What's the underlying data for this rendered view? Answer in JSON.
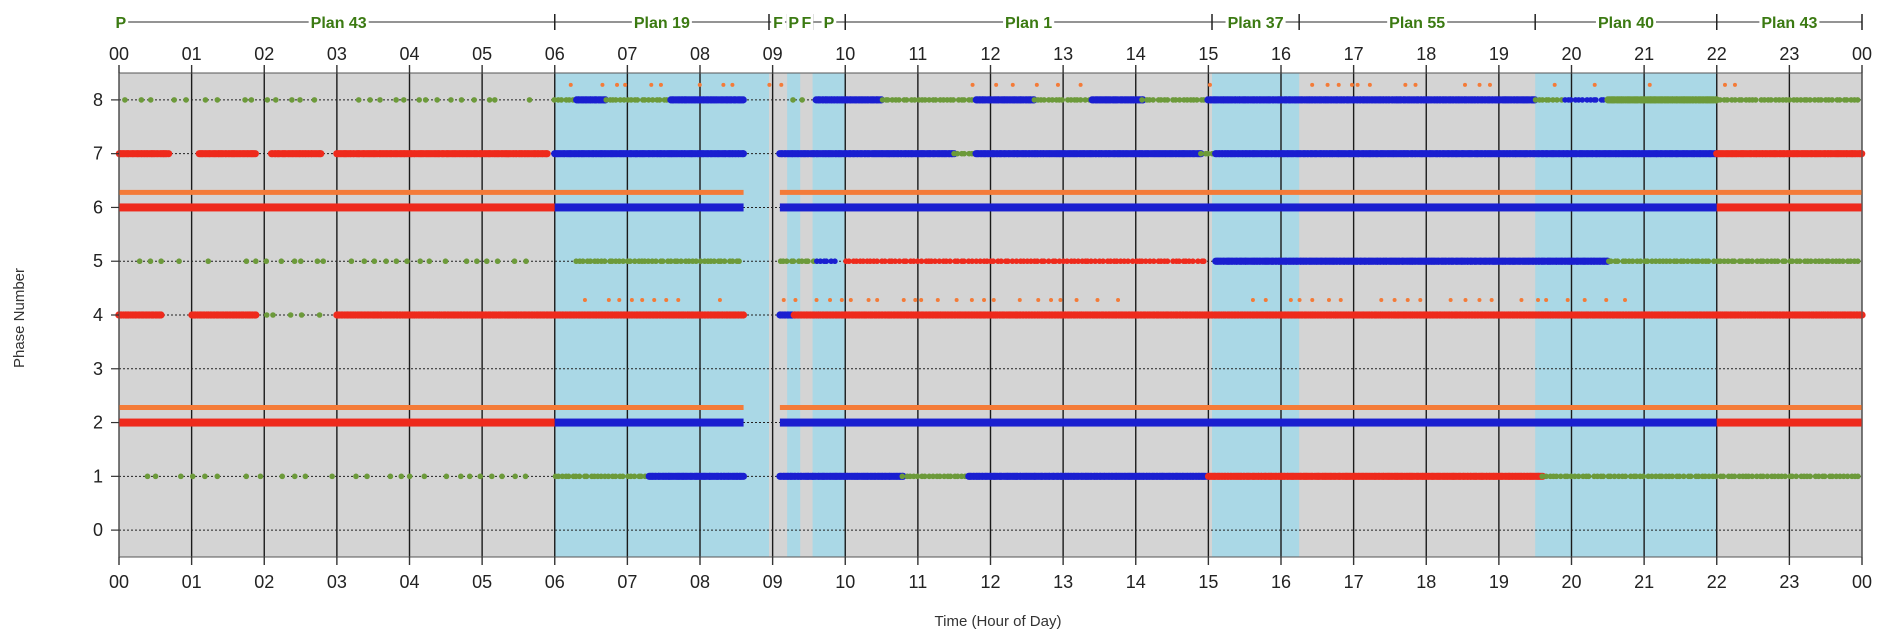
{
  "chart_data": {
    "type": "scatter",
    "title": "",
    "xlabel": "Time (Hour of Day)",
    "ylabel": "Phase Number",
    "xlim": [
      0,
      24
    ],
    "ylim": [
      -0.5,
      8.5
    ],
    "x_ticks": [
      "00",
      "01",
      "02",
      "03",
      "04",
      "05",
      "06",
      "07",
      "08",
      "09",
      "10",
      "11",
      "12",
      "13",
      "14",
      "15",
      "16",
      "17",
      "18",
      "19",
      "20",
      "21",
      "22",
      "23",
      "00"
    ],
    "y_ticks": [
      "0",
      "1",
      "2",
      "3",
      "4",
      "5",
      "6",
      "7",
      "8"
    ],
    "grid": "dotted horizontal at each phase, solid vertical at each hour",
    "colors": {
      "plot_bg": "#d4d4d4",
      "plan_shade": "#aad8e6",
      "red": "#ee2a1c",
      "orange": "#f47b38",
      "green": "#6c9a3a",
      "blue": "#1a1fd0",
      "plan_text": "#3b7a12"
    },
    "plans": [
      {
        "label": "P",
        "start": 0.0,
        "end": 0.05,
        "shaded": false
      },
      {
        "label": "Plan 43",
        "start": 0.05,
        "end": 6.0,
        "shaded": false
      },
      {
        "label": "Plan 19",
        "start": 6.0,
        "end": 8.95,
        "shaded": true
      },
      {
        "label": "F",
        "start": 8.95,
        "end": 9.2,
        "shaded": false
      },
      {
        "label": "P",
        "start": 9.2,
        "end": 9.38,
        "shaded": true
      },
      {
        "label": "F",
        "start": 9.38,
        "end": 9.55,
        "shaded": false
      },
      {
        "label": "P",
        "start": 9.55,
        "end": 10.0,
        "shaded": true
      },
      {
        "label": "Plan 1",
        "start": 10.0,
        "end": 15.05,
        "shaded": false
      },
      {
        "label": "Plan 37",
        "start": 15.05,
        "end": 16.25,
        "shaded": true
      },
      {
        "label": "Plan 55",
        "start": 16.25,
        "end": 19.5,
        "shaded": false
      },
      {
        "label": "Plan 40",
        "start": 19.5,
        "end": 22.0,
        "shaded": true
      },
      {
        "label": "Plan 43",
        "start": 22.0,
        "end": 24.0,
        "shaded": false
      }
    ],
    "series": [
      {
        "phase": 8,
        "segments": [
          {
            "color": "green",
            "density": "sparse",
            "from": 0.1,
            "to": 6.0
          },
          {
            "color": "green",
            "density": "medium",
            "from": 6.0,
            "to": 6.3
          },
          {
            "color": "blue",
            "density": "dense",
            "from": 6.3,
            "to": 6.7
          },
          {
            "color": "green",
            "density": "medium",
            "from": 6.7,
            "to": 7.6
          },
          {
            "color": "blue",
            "density": "dense",
            "from": 7.6,
            "to": 8.6
          },
          {
            "color": "green",
            "density": "sparse",
            "from": 9.1,
            "to": 9.6
          },
          {
            "color": "blue",
            "density": "dense",
            "from": 9.6,
            "to": 10.5
          },
          {
            "color": "green",
            "density": "medium",
            "from": 10.5,
            "to": 11.8
          },
          {
            "color": "blue",
            "density": "dense",
            "from": 11.8,
            "to": 12.6
          },
          {
            "color": "green",
            "density": "medium",
            "from": 12.6,
            "to": 13.4
          },
          {
            "color": "blue",
            "density": "dense",
            "from": 13.4,
            "to": 14.1
          },
          {
            "color": "green",
            "density": "medium",
            "from": 14.1,
            "to": 15.0
          },
          {
            "color": "blue",
            "density": "dense",
            "from": 15.0,
            "to": 19.5
          },
          {
            "color": "green",
            "density": "medium",
            "from": 19.5,
            "to": 19.9
          },
          {
            "color": "blue",
            "density": "medium",
            "from": 19.9,
            "to": 20.5
          },
          {
            "color": "green",
            "density": "dense",
            "from": 20.5,
            "to": 22.0
          },
          {
            "color": "green",
            "density": "medium",
            "from": 22.0,
            "to": 24.0
          },
          {
            "color": "orange",
            "density": "sparse",
            "from": 6.2,
            "to": 8.7,
            "offset": 0.28
          },
          {
            "color": "orange",
            "density": "sparse",
            "from": 9.0,
            "to": 9.6,
            "offset": 0.28
          },
          {
            "color": "orange",
            "density": "sparse",
            "from": 11.8,
            "to": 13.3,
            "offset": 0.28
          },
          {
            "color": "orange",
            "density": "sparse",
            "from": 15.0,
            "to": 15.4,
            "offset": 0.28
          },
          {
            "color": "orange",
            "density": "sparse",
            "from": 16.3,
            "to": 19.2,
            "offset": 0.28
          },
          {
            "color": "orange",
            "density": "sparse",
            "from": 19.8,
            "to": 21.4,
            "offset": 0.28
          },
          {
            "color": "orange",
            "density": "sparse",
            "from": 22.1,
            "to": 22.3,
            "offset": 0.28
          }
        ]
      },
      {
        "phase": 7,
        "segments": [
          {
            "color": "red",
            "density": "dense",
            "from": 0.0,
            "to": 0.7
          },
          {
            "color": "red",
            "density": "dense",
            "from": 1.1,
            "to": 1.9
          },
          {
            "color": "red",
            "density": "dense",
            "from": 2.1,
            "to": 2.8
          },
          {
            "color": "red",
            "density": "dense",
            "from": 3.0,
            "to": 5.9
          },
          {
            "color": "blue",
            "density": "dense",
            "from": 6.0,
            "to": 8.6
          },
          {
            "color": "blue",
            "density": "dense",
            "from": 9.1,
            "to": 11.5
          },
          {
            "color": "green",
            "density": "medium",
            "from": 11.5,
            "to": 11.8
          },
          {
            "color": "blue",
            "density": "dense",
            "from": 11.8,
            "to": 14.9
          },
          {
            "color": "green",
            "density": "medium",
            "from": 14.9,
            "to": 15.1
          },
          {
            "color": "blue",
            "density": "dense",
            "from": 15.1,
            "to": 22.0
          },
          {
            "color": "red",
            "density": "dense",
            "from": 22.0,
            "to": 24.0
          }
        ]
      },
      {
        "phase": 6,
        "segments": [
          {
            "color": "red",
            "density": "solid",
            "from": 0.0,
            "to": 6.0
          },
          {
            "color": "blue",
            "density": "solid",
            "from": 6.0,
            "to": 8.6
          },
          {
            "color": "blue",
            "density": "solid",
            "from": 9.1,
            "to": 22.0
          },
          {
            "color": "red",
            "density": "solid",
            "from": 22.0,
            "to": 24.0
          },
          {
            "color": "orange",
            "density": "solid",
            "from": 0.0,
            "to": 8.6,
            "offset": 0.28
          },
          {
            "color": "orange",
            "density": "solid",
            "from": 9.1,
            "to": 24.0,
            "offset": 0.28
          }
        ]
      },
      {
        "phase": 5,
        "segments": [
          {
            "color": "green",
            "density": "sparse",
            "from": 0.3,
            "to": 5.6
          },
          {
            "color": "green",
            "density": "medium",
            "from": 6.3,
            "to": 8.6
          },
          {
            "color": "green",
            "density": "medium",
            "from": 9.1,
            "to": 9.6
          },
          {
            "color": "blue",
            "density": "medium",
            "from": 9.6,
            "to": 9.9
          },
          {
            "color": "red",
            "density": "medium",
            "from": 10.0,
            "to": 15.0
          },
          {
            "color": "blue",
            "density": "dense",
            "from": 15.1,
            "to": 20.5
          },
          {
            "color": "green",
            "density": "medium",
            "from": 20.5,
            "to": 24.0
          }
        ]
      },
      {
        "phase": 4,
        "segments": [
          {
            "color": "red",
            "density": "dense",
            "from": 0.0,
            "to": 0.6
          },
          {
            "color": "red",
            "density": "dense",
            "from": 1.0,
            "to": 1.9
          },
          {
            "color": "green",
            "density": "sparse",
            "from": 2.0,
            "to": 2.9
          },
          {
            "color": "red",
            "density": "dense",
            "from": 3.0,
            "to": 6.0
          },
          {
            "color": "red",
            "density": "dense",
            "from": 6.0,
            "to": 8.6
          },
          {
            "color": "blue",
            "density": "dense",
            "from": 9.1,
            "to": 9.3
          },
          {
            "color": "red",
            "density": "dense",
            "from": 9.3,
            "to": 10.0
          },
          {
            "color": "red",
            "density": "dense",
            "from": 10.0,
            "to": 22.0
          },
          {
            "color": "red",
            "density": "dense",
            "from": 22.0,
            "to": 24.0
          },
          {
            "color": "orange",
            "density": "sparse",
            "from": 6.4,
            "to": 8.4,
            "offset": 0.28
          },
          {
            "color": "orange",
            "density": "sparse",
            "from": 9.0,
            "to": 14.0,
            "offset": 0.28
          },
          {
            "color": "orange",
            "density": "sparse",
            "from": 15.5,
            "to": 21.2,
            "offset": 0.28
          }
        ]
      },
      {
        "phase": 2,
        "segments": [
          {
            "color": "red",
            "density": "solid",
            "from": 0.0,
            "to": 6.0
          },
          {
            "color": "blue",
            "density": "solid",
            "from": 6.0,
            "to": 8.6
          },
          {
            "color": "blue",
            "density": "solid",
            "from": 9.1,
            "to": 22.0
          },
          {
            "color": "red",
            "density": "solid",
            "from": 22.0,
            "to": 24.0
          },
          {
            "color": "orange",
            "density": "solid",
            "from": 0.0,
            "to": 8.6,
            "offset": 0.28
          },
          {
            "color": "orange",
            "density": "solid",
            "from": 9.1,
            "to": 24.0,
            "offset": 0.28
          }
        ]
      },
      {
        "phase": 1,
        "segments": [
          {
            "color": "green",
            "density": "sparse",
            "from": 0.2,
            "to": 5.8
          },
          {
            "color": "green",
            "density": "medium",
            "from": 6.0,
            "to": 7.3
          },
          {
            "color": "blue",
            "density": "dense",
            "from": 7.3,
            "to": 8.6
          },
          {
            "color": "blue",
            "density": "dense",
            "from": 9.1,
            "to": 10.8
          },
          {
            "color": "green",
            "density": "medium",
            "from": 10.8,
            "to": 11.7
          },
          {
            "color": "blue",
            "density": "dense",
            "from": 11.7,
            "to": 15.0
          },
          {
            "color": "red",
            "density": "dense",
            "from": 15.0,
            "to": 19.6
          },
          {
            "color": "green",
            "density": "medium",
            "from": 19.6,
            "to": 24.0
          }
        ]
      }
    ]
  }
}
